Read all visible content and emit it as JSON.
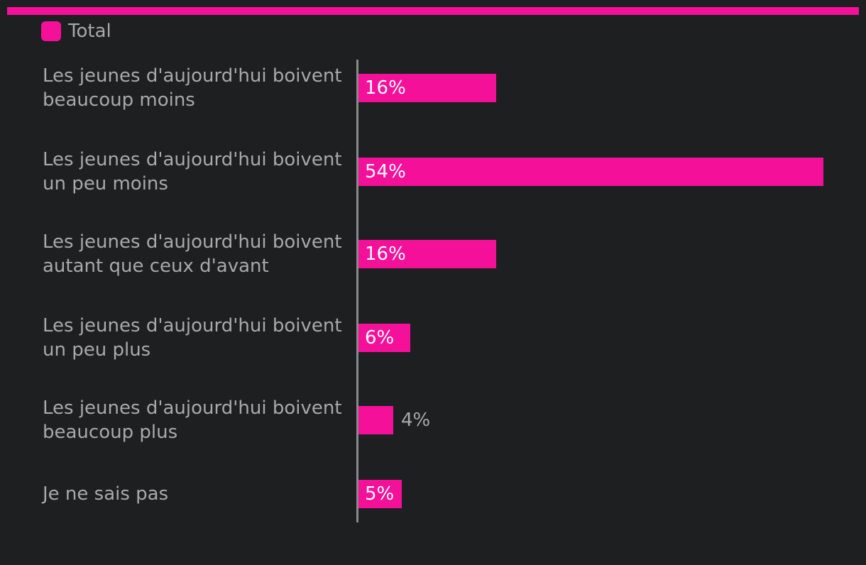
{
  "colors": {
    "background": "#1e1f21",
    "accent": "#f5109a",
    "text": "#a9a9a9",
    "axis": "#8a8a8a",
    "label_inside": "#ffffff"
  },
  "legend": {
    "label": "Total"
  },
  "chart_data": {
    "type": "bar",
    "orientation": "horizontal",
    "categories": [
      "Les jeunes d'aujourd'hui boivent beaucoup moins",
      "Les jeunes d'aujourd'hui boivent un peu moins",
      "Les jeunes d'aujourd'hui boivent autant que ceux d'avant",
      "Les jeunes d'aujourd'hui boivent un peu plus",
      "Les jeunes d'aujourd'hui boivent beaucoup plus",
      "Je ne sais pas"
    ],
    "series": [
      {
        "name": "Total",
        "values": [
          16,
          54,
          16,
          6,
          4,
          5
        ],
        "value_labels": [
          "16%",
          "54%",
          "16%",
          "6%",
          "4%",
          "5%"
        ]
      }
    ],
    "value_unit": "%",
    "xlim": [
      0,
      54
    ],
    "grid": false,
    "legend_position": "top-left"
  }
}
